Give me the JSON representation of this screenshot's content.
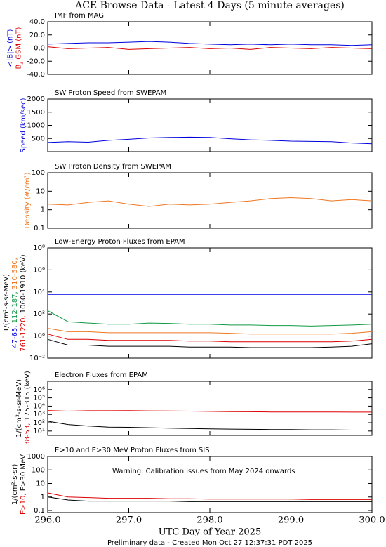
{
  "title": "ACE Browse Data - Latest 4 Days (5 minute averages)",
  "xlabel": "UTC Day of Year 2025",
  "footer": "Preliminary data - Created Mon Oct 27 12:37:31 PDT 2025",
  "chart_data": [
    {
      "type": "line",
      "title": "IMF from MAG",
      "log": false,
      "ylabel": [
        [
          {
            "text": "<|B|> (nT)",
            "color": "#0000dd"
          }
        ],
        [
          {
            "text": "B",
            "color": "#dd0000"
          },
          {
            "text": "z",
            "color": "#dd0000",
            "sub": true
          },
          {
            "text": " GSM (nT)",
            "color": "#dd0000"
          }
        ]
      ],
      "x": [
        296,
        296.25,
        296.5,
        296.75,
        297,
        297.25,
        297.5,
        297.75,
        298,
        298.25,
        298.5,
        298.75,
        299,
        299.25,
        299.5,
        299.75,
        300
      ],
      "xlim": [
        296,
        300
      ],
      "xticks": [
        296,
        297,
        298,
        299,
        300
      ],
      "ylim": [
        -40,
        40
      ],
      "yticks": [
        {
          "value": -40,
          "label": "-40.0"
        },
        {
          "value": -20,
          "label": "-20.0"
        },
        {
          "value": 0,
          "label": "0.0"
        },
        {
          "value": 20,
          "label": "20.0"
        },
        {
          "value": 40,
          "label": "40.0"
        }
      ],
      "series": [
        {
          "color": "#0000dd",
          "values": [
            6,
            7,
            8,
            8,
            9,
            10,
            9,
            7,
            6,
            5,
            6,
            5,
            6,
            5,
            5,
            4,
            5
          ]
        },
        {
          "color": "#dd0000",
          "values": [
            2,
            -1,
            0,
            1,
            -2,
            -1,
            0,
            1,
            -1,
            0,
            -2,
            1,
            0,
            -1,
            1,
            0,
            -1
          ]
        }
      ]
    },
    {
      "type": "line",
      "title": "SW Proton Speed from SWEPAM",
      "log": false,
      "ylabel": [
        [
          {
            "text": "Speed (km/sec)",
            "color": "#0000dd"
          }
        ]
      ],
      "x": [
        296,
        296.25,
        296.5,
        296.75,
        297,
        297.25,
        297.5,
        297.75,
        298,
        298.25,
        298.5,
        298.75,
        299,
        299.25,
        299.5,
        299.75,
        300
      ],
      "xlim": [
        296,
        300
      ],
      "xticks": [
        296,
        297,
        298,
        299,
        300
      ],
      "ylim": [
        0,
        2000
      ],
      "yticks": [
        500,
        1000,
        1500,
        2000
      ],
      "series": [
        {
          "color": "#0000dd",
          "values": [
            350,
            380,
            360,
            430,
            470,
            520,
            540,
            550,
            540,
            490,
            450,
            430,
            400,
            390,
            380,
            330,
            300
          ]
        }
      ]
    },
    {
      "type": "line",
      "title": "SW Proton Density from SWEPAM",
      "log": true,
      "ylabel": [
        [
          {
            "text": "Density (#/cm³)",
            "color": "#ee7722"
          }
        ]
      ],
      "x": [
        296,
        296.25,
        296.5,
        296.75,
        297,
        297.25,
        297.5,
        297.75,
        298,
        298.25,
        298.5,
        298.75,
        299,
        299.25,
        299.5,
        299.75,
        300
      ],
      "xlim": [
        296,
        300
      ],
      "xticks": [
        296,
        297,
        298,
        299,
        300
      ],
      "ylim": [
        0.1,
        100
      ],
      "yticks": [
        0.1,
        1,
        10,
        100
      ],
      "series": [
        {
          "color": "#ee7722",
          "values": [
            2,
            1.8,
            2.5,
            3,
            2,
            1.5,
            2,
            1.8,
            2,
            2.5,
            3,
            4,
            4.5,
            4,
            3,
            3.5,
            3
          ]
        }
      ]
    },
    {
      "type": "line",
      "title": "Low-Energy Proton Fluxes from EPAM",
      "log": true,
      "ylabel": [
        [
          {
            "text": "1/(cm²-s-sr-MeV)",
            "color": "#000000"
          }
        ],
        [
          {
            "text": "47-65, ",
            "color": "#0000dd"
          },
          {
            "text": "112-187, ",
            "color": "#119944"
          },
          {
            "text": "310-580,",
            "color": "#ee7722"
          }
        ],
        [
          {
            "text": "761-1220, ",
            "color": "#dd0000"
          },
          {
            "text": "1060-1910 (keV)",
            "color": "#000000"
          }
        ]
      ],
      "x": [
        296,
        296.25,
        296.5,
        296.75,
        297,
        297.25,
        297.5,
        297.75,
        298,
        298.25,
        298.5,
        298.75,
        299,
        299.25,
        299.5,
        299.75,
        300
      ],
      "xlim": [
        296,
        300
      ],
      "xticks": [
        296,
        297,
        298,
        299,
        300
      ],
      "ylim": [
        0.01,
        100000000
      ],
      "yticks": [
        {
          "value": 0.01,
          "label": "10⁻²"
        },
        {
          "value": 1,
          "label": "10⁰"
        },
        {
          "value": 100,
          "label": "10²"
        },
        {
          "value": 10000,
          "label": "10⁴"
        },
        {
          "value": 1000000,
          "label": "10⁶"
        },
        {
          "value": 100000000,
          "label": "10⁸"
        }
      ],
      "series": [
        {
          "color": "#0000dd",
          "values": [
            6000,
            6000,
            6000,
            6000,
            6000,
            6000,
            6000,
            6000,
            6000,
            6000,
            6000,
            6000,
            6000,
            6000,
            6000,
            6000,
            6000
          ]
        },
        {
          "color": "#119944",
          "values": [
            200,
            20,
            15,
            12,
            12,
            15,
            14,
            12,
            12,
            10,
            10,
            9,
            9,
            8,
            9,
            10,
            12
          ]
        },
        {
          "color": "#ee7722",
          "values": [
            5,
            2.5,
            2.5,
            2,
            2,
            2,
            2,
            2,
            2,
            1.8,
            1.5,
            1.5,
            1.5,
            1.5,
            1.5,
            1.8,
            2.5
          ]
        },
        {
          "color": "#dd0000",
          "values": [
            1.5,
            0.5,
            0.5,
            0.4,
            0.4,
            0.4,
            0.4,
            0.35,
            0.35,
            0.3,
            0.3,
            0.3,
            0.3,
            0.3,
            0.3,
            0.35,
            0.5
          ]
        },
        {
          "color": "#000000",
          "values": [
            0.5,
            0.15,
            0.15,
            0.12,
            0.12,
            0.12,
            0.12,
            0.1,
            0.1,
            0.1,
            0.09,
            0.09,
            0.09,
            0.09,
            0.1,
            0.12,
            0.2
          ]
        }
      ]
    },
    {
      "type": "line",
      "title": "Electron Fluxes from EPAM",
      "log": true,
      "ylabel": [
        [
          {
            "text": "1/(cm²-s-sr-MeV)",
            "color": "#000000"
          }
        ],
        [
          {
            "text": "38-53, ",
            "color": "#dd0000"
          },
          {
            "text": "175-315 (keV)",
            "color": "#000000"
          }
        ]
      ],
      "x": [
        296,
        296.25,
        296.5,
        296.75,
        297,
        297.25,
        297.5,
        297.75,
        298,
        298.25,
        298.5,
        298.75,
        299,
        299.25,
        299.5,
        299.75,
        300
      ],
      "xlim": [
        296,
        300
      ],
      "xticks": [
        296,
        297,
        298,
        299,
        300
      ],
      "ylim": [
        3,
        10000000
      ],
      "yticks": [
        {
          "value": 10,
          "label": "10¹"
        },
        {
          "value": 100,
          "label": "10²"
        },
        {
          "value": 1000,
          "label": "10³"
        },
        {
          "value": 10000,
          "label": "10⁴"
        },
        {
          "value": 100000,
          "label": "10⁵"
        },
        {
          "value": 1000000,
          "label": "10⁶"
        }
      ],
      "series": [
        {
          "color": "#dd0000",
          "values": [
            3000,
            2500,
            2800,
            2800,
            2900,
            2700,
            2600,
            2500,
            2300,
            2200,
            2100,
            2000,
            2000,
            2000,
            2000,
            1900,
            1900
          ]
        },
        {
          "color": "#000000",
          "values": [
            150,
            60,
            40,
            30,
            28,
            25,
            22,
            20,
            18,
            17,
            16,
            15,
            15,
            14,
            14,
            13,
            13
          ]
        }
      ]
    },
    {
      "type": "line",
      "title": "E>10 and E>30 MeV Proton Fluxes from SIS",
      "log": true,
      "ylabel": [
        [
          {
            "text": "1/(cm²-s-sr)",
            "color": "#000000"
          }
        ],
        [
          {
            "text": "E>10, ",
            "color": "#dd0000"
          },
          {
            "text": "E>30 MeV",
            "color": "#000000"
          }
        ]
      ],
      "annotations": [
        {
          "text": "Warning: Calibration issues from May 2024 onwards",
          "color": "#dd0000"
        }
      ],
      "x": [
        296,
        296.25,
        296.5,
        296.75,
        297,
        297.25,
        297.5,
        297.75,
        298,
        298.25,
        298.5,
        298.75,
        299,
        299.25,
        299.5,
        299.75,
        300
      ],
      "xlim": [
        296,
        300
      ],
      "xticks": [
        {
          "value": 296,
          "label": "296.0"
        },
        {
          "value": 297,
          "label": "297.0"
        },
        {
          "value": 298,
          "label": "298.0"
        },
        {
          "value": 299,
          "label": "299.0"
        },
        {
          "value": 300,
          "label": "300.0"
        }
      ],
      "ylim": [
        0.07,
        1000
      ],
      "yticks": [
        0.1,
        1,
        10,
        100,
        1000
      ],
      "series": [
        {
          "color": "#dd0000",
          "values": [
            2,
            1,
            0.9,
            0.8,
            0.8,
            0.8,
            0.75,
            0.75,
            0.7,
            0.7,
            0.7,
            0.7,
            0.7,
            0.65,
            0.65,
            0.65,
            0.65
          ]
        },
        {
          "color": "#000000",
          "values": [
            1,
            0.6,
            0.5,
            0.5,
            0.5,
            0.5,
            0.5,
            0.45,
            0.45,
            0.45,
            0.45,
            0.45,
            0.45,
            0.45,
            0.45,
            0.45,
            0.45
          ]
        }
      ]
    }
  ]
}
